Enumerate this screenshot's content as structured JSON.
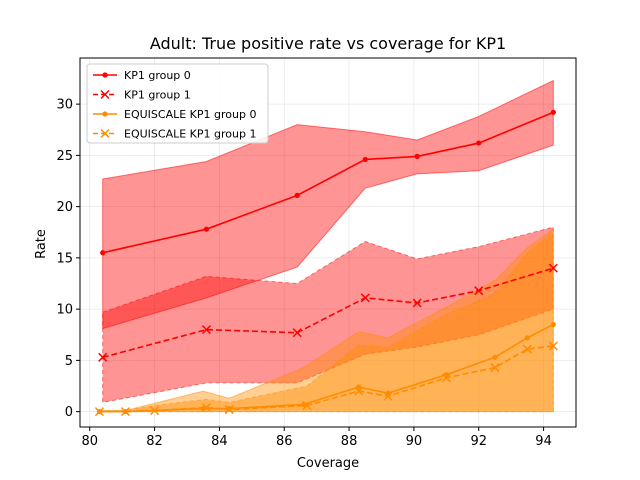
{
  "chart_data": {
    "type": "line",
    "title": "Adult: True positive rate vs coverage for KP1",
    "xlabel": "Coverage",
    "ylabel": "Rate",
    "xlim": [
      79.7,
      95.0
    ],
    "ylim": [
      -1.5,
      34.5
    ],
    "xticks": [
      80,
      82,
      84,
      86,
      88,
      90,
      92,
      94
    ],
    "yticks": [
      0,
      5,
      10,
      15,
      20,
      25,
      30
    ],
    "grid": true,
    "legend_position": "top-left",
    "colors": {
      "kp1": "#ff0000",
      "equiscale": "#ff8c00"
    },
    "series": [
      {
        "name": "KP1 group 0",
        "color": "#ff0000",
        "linestyle": "solid",
        "marker": "dot",
        "x": [
          80.4,
          83.6,
          86.4,
          88.5,
          90.1,
          92.0,
          94.3
        ],
        "y": [
          15.5,
          17.8,
          21.1,
          24.6,
          24.9,
          26.2,
          29.2
        ],
        "band_low": [
          8.1,
          11.1,
          14.1,
          21.8,
          23.2,
          23.5,
          26.0
        ],
        "band_high": [
          22.7,
          24.4,
          28.0,
          27.3,
          26.5,
          28.8,
          32.3
        ]
      },
      {
        "name": "KP1 group 1",
        "color": "#ff0000",
        "linestyle": "dashed",
        "marker": "x",
        "x": [
          80.4,
          83.6,
          86.4,
          88.5,
          90.1,
          92.0,
          94.3
        ],
        "y": [
          5.3,
          8.0,
          7.7,
          11.1,
          10.6,
          11.8,
          14.0
        ],
        "band_low": [
          0.9,
          2.8,
          2.8,
          5.6,
          6.3,
          7.5,
          10.0
        ],
        "band_high": [
          9.7,
          13.2,
          12.5,
          16.6,
          14.9,
          16.1,
          18.0
        ]
      },
      {
        "name": "EQUISCALE KP1 group 0",
        "color": "#ff8c00",
        "linestyle": "solid",
        "marker": "dot",
        "x": [
          80.3,
          81.1,
          83.5,
          84.3,
          86.6,
          88.3,
          89.2,
          91.0,
          92.5,
          93.5,
          94.3
        ],
        "y": [
          0.0,
          0.0,
          0.3,
          0.3,
          0.7,
          2.4,
          1.8,
          3.6,
          5.3,
          7.2,
          8.5
        ],
        "band_low": [
          0.0,
          0.0,
          0.0,
          0.0,
          0.0,
          0.0,
          0.0,
          0.0,
          0.0,
          0.0,
          0.0
        ],
        "band_high": [
          0.1,
          0.1,
          2.0,
          1.3,
          4.3,
          7.8,
          7.2,
          10.2,
          12.8,
          16.0,
          17.8
        ]
      },
      {
        "name": "EQUISCALE KP1 group 1",
        "color": "#ff8c00",
        "linestyle": "dashed",
        "marker": "x",
        "x": [
          80.3,
          81.1,
          82.0,
          83.6,
          84.3,
          86.7,
          88.3,
          89.2,
          91.0,
          92.5,
          93.5,
          94.3
        ],
        "y": [
          0.0,
          0.0,
          0.1,
          0.4,
          0.2,
          0.6,
          2.0,
          1.5,
          3.3,
          4.3,
          6.1,
          6.4
        ],
        "band_low": [
          0.0,
          0.0,
          0.0,
          0.0,
          0.0,
          0.0,
          0.0,
          0.0,
          0.0,
          0.0,
          0.0,
          0.0
        ],
        "band_high": [
          0.1,
          0.1,
          0.6,
          1.2,
          0.9,
          2.5,
          6.5,
          6.3,
          9.5,
          11.5,
          15.5,
          17.5
        ]
      }
    ]
  }
}
